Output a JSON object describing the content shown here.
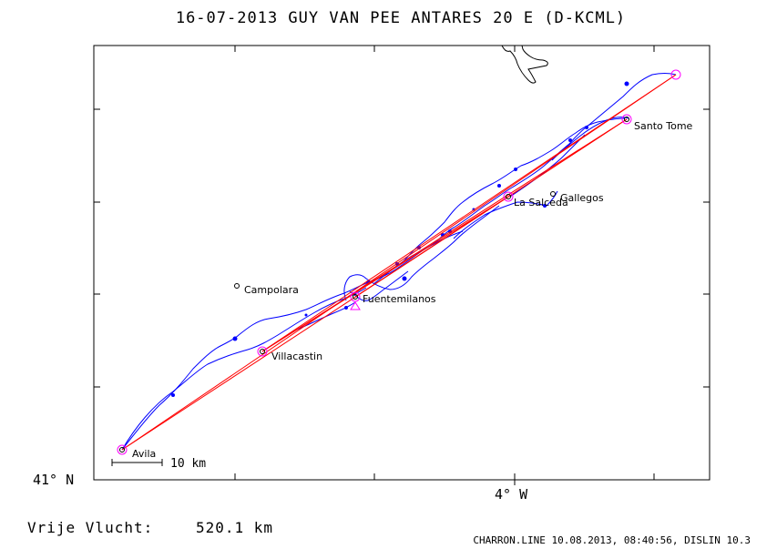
{
  "title": "16-07-2013   GUY VAN PEE   ANTARES 20 E (D-KCML)",
  "axes": {
    "lat_label": "41° N",
    "lon_label": "4° W"
  },
  "scale_bar": {
    "label": "10 km"
  },
  "places": [
    {
      "id": "avila",
      "name": "Avila"
    },
    {
      "id": "villacastin",
      "name": "Villacastin"
    },
    {
      "id": "campolara",
      "name": "Campolara"
    },
    {
      "id": "fuentemilanos",
      "name": "Fuentemilanos"
    },
    {
      "id": "la-salceda",
      "name": "La Salceda"
    },
    {
      "id": "gallegos",
      "name": "Gallegos"
    },
    {
      "id": "santo-tome",
      "name": "Santo Tome"
    }
  ],
  "free_flight": {
    "label": "Vrije Vlucht:",
    "value": "520.1 km"
  },
  "footer": {
    "credit": "CHARRON.LINE 10.08.2013, 08:40:56, DISLIN 10.3"
  },
  "colors": {
    "track": "#0000ff",
    "task_line": "#ff0000",
    "turnpoint": "#ff00ff",
    "coast": "#000000"
  }
}
